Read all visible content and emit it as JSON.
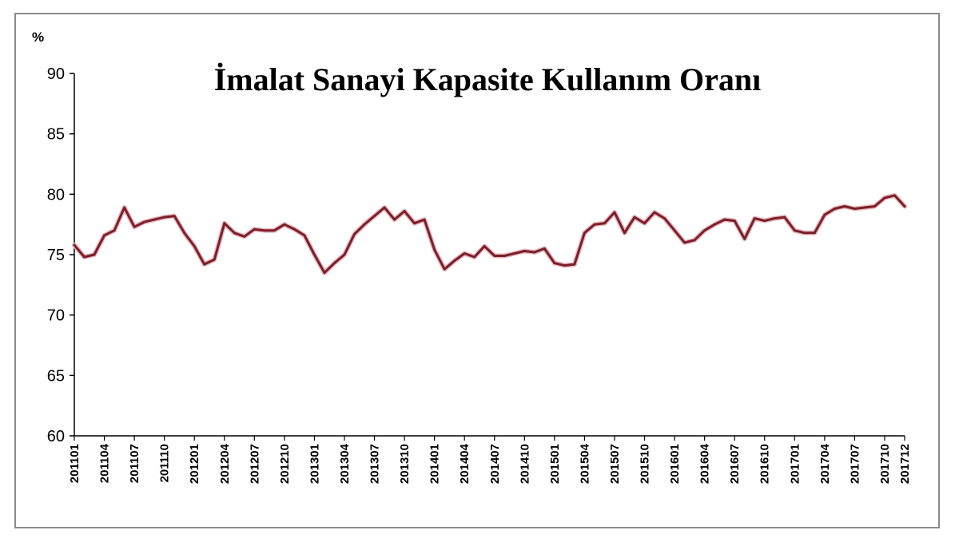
{
  "chart_data": {
    "type": "line",
    "title": "İmalat Sanayi Kapasite Kullanım Oranı",
    "unit_label": "%",
    "xlabel": "",
    "ylabel": "",
    "ylim": [
      60,
      90
    ],
    "y_ticks": [
      "90",
      "85",
      "80",
      "75",
      "70",
      "65",
      "60"
    ],
    "x_tick_labels": [
      "201101",
      "201104",
      "201107",
      "201110",
      "201201",
      "201204",
      "201207",
      "201210",
      "201301",
      "201304",
      "201307",
      "201310",
      "201401",
      "201404",
      "201407",
      "201410",
      "201501",
      "201504",
      "201507",
      "201510",
      "201601",
      "201604",
      "201607",
      "201610",
      "201701",
      "201704",
      "201707",
      "201710",
      "201712"
    ],
    "grid": false,
    "legend": "none",
    "line_color": "#7b1f2b",
    "series": [
      {
        "name": "",
        "periods": [
          "201101",
          "201102",
          "201103",
          "201104",
          "201105",
          "201106",
          "201107",
          "201108",
          "201109",
          "201110",
          "201111",
          "201112",
          "201201",
          "201202",
          "201203",
          "201204",
          "201205",
          "201206",
          "201207",
          "201208",
          "201209",
          "201210",
          "201211",
          "201212",
          "201301",
          "201302",
          "201303",
          "201304",
          "201305",
          "201306",
          "201307",
          "201308",
          "201309",
          "201310",
          "201311",
          "201312",
          "201401",
          "201402",
          "201403",
          "201404",
          "201405",
          "201406",
          "201407",
          "201408",
          "201409",
          "201410",
          "201411",
          "201412",
          "201501",
          "201502",
          "201503",
          "201504",
          "201505",
          "201506",
          "201507",
          "201508",
          "201509",
          "201510",
          "201511",
          "201512",
          "201601",
          "201602",
          "201603",
          "201604",
          "201605",
          "201606",
          "201607",
          "201608",
          "201609",
          "201610",
          "201611",
          "201612",
          "201701",
          "201702",
          "201703",
          "201704",
          "201705",
          "201706",
          "201707",
          "201708",
          "201709",
          "201710",
          "201711",
          "201712"
        ],
        "values": [
          75.8,
          74.8,
          75.0,
          76.6,
          77.0,
          78.9,
          77.3,
          77.7,
          77.9,
          78.1,
          78.2,
          76.8,
          75.7,
          74.2,
          74.6,
          77.6,
          76.8,
          76.5,
          77.1,
          77.0,
          77.0,
          77.5,
          77.1,
          76.6,
          75.0,
          73.5,
          74.3,
          75.0,
          76.7,
          77.5,
          78.2,
          78.9,
          77.9,
          78.6,
          77.6,
          77.9,
          75.4,
          73.8,
          74.5,
          75.1,
          74.8,
          75.7,
          74.9,
          74.9,
          75.1,
          75.3,
          75.2,
          75.5,
          74.3,
          74.1,
          74.2,
          76.8,
          77.5,
          77.6,
          78.5,
          76.8,
          78.1,
          77.6,
          78.5,
          78.0,
          77.0,
          76.0,
          76.2,
          77.0,
          77.5,
          77.9,
          77.8,
          76.3,
          78.0,
          77.8,
          78.0,
          78.1,
          77.0,
          76.8,
          76.8,
          78.3,
          78.8,
          79.0,
          78.8,
          78.9,
          79.0,
          79.7,
          79.9,
          79.0
        ]
      }
    ]
  }
}
